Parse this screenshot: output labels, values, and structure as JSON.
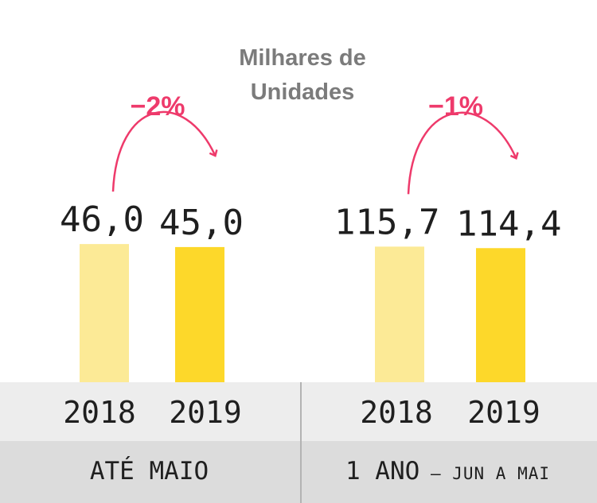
{
  "unit_title_line1": "Milhares de",
  "unit_title_line2": "Unidades",
  "colors": {
    "light_bar": "#fcea96",
    "dark_bar": "#fdd82a",
    "accent": "#ee3a6b",
    "text": "#1f1f1f"
  },
  "chart_data": [
    {
      "type": "bar",
      "categories": [
        "2018",
        "2019"
      ],
      "values": [
        46.0,
        45.0
      ],
      "value_labels": [
        "46,0",
        "45,0"
      ],
      "change_label": "−2%",
      "period_label": "ATÉ MAIO",
      "period_sub_label": ""
    },
    {
      "type": "bar",
      "categories": [
        "2018",
        "2019"
      ],
      "values": [
        115.7,
        114.4
      ],
      "value_labels": [
        "115,7",
        "114,4"
      ],
      "change_label": "−1%",
      "period_label": "1 ANO",
      "period_sub_label": " – JUN A MAI"
    }
  ]
}
